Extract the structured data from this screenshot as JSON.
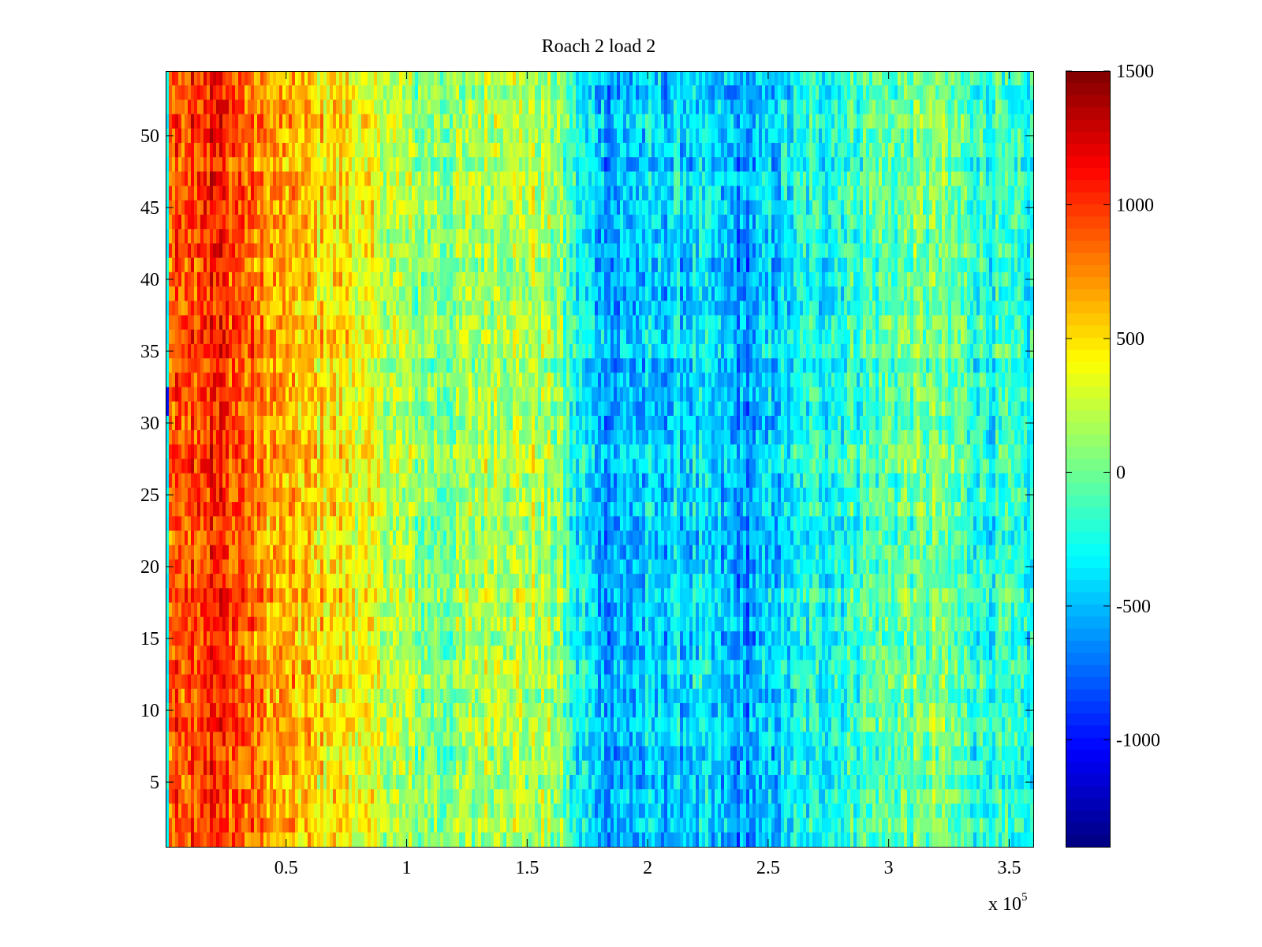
{
  "chart_data": {
    "type": "heatmap",
    "title": "Roach 2 load 2",
    "xlabel": "",
    "ylabel": "",
    "x_range": [
      0,
      360000
    ],
    "y_range": [
      0.5,
      54.5
    ],
    "x_ticks": [
      50000,
      100000,
      150000,
      200000,
      250000,
      300000,
      350000
    ],
    "x_tick_labels": [
      "0.5",
      "1",
      "1.5",
      "2",
      "2.5",
      "3",
      "3.5"
    ],
    "x_multiplier_base": "x 10",
    "x_multiplier_exponent": "5",
    "y_ticks": [
      5,
      10,
      15,
      20,
      25,
      30,
      35,
      40,
      45,
      50
    ],
    "y_tick_labels": [
      "5",
      "10",
      "15",
      "20",
      "25",
      "30",
      "35",
      "40",
      "45",
      "50"
    ],
    "rows": 54,
    "colormap": "jet",
    "clim": [
      -1400,
      1500
    ],
    "colorbar_ticks": [
      1500,
      1000,
      500,
      0,
      -500,
      -1000
    ],
    "colorbar_tick_labels": [
      "1500",
      "1000",
      "500",
      "0",
      "-500",
      "-1000"
    ],
    "column_profile": {
      "description": "approximate mean value per x position (data units), rows vary around it",
      "x": [
        0,
        10000,
        20000,
        30000,
        45000,
        60000,
        75000,
        90000,
        105000,
        120000,
        135000,
        150000,
        163000,
        170000,
        185000,
        200000,
        220000,
        240000,
        260000,
        280000,
        300000,
        320000,
        340000,
        360000
      ],
      "mean": [
        800,
        1000,
        1050,
        900,
        650,
        520,
        450,
        250,
        80,
        50,
        220,
        200,
        100,
        -300,
        -550,
        -480,
        -400,
        -600,
        -350,
        -200,
        -50,
        0,
        -200,
        -300
      ]
    },
    "grid": false
  }
}
